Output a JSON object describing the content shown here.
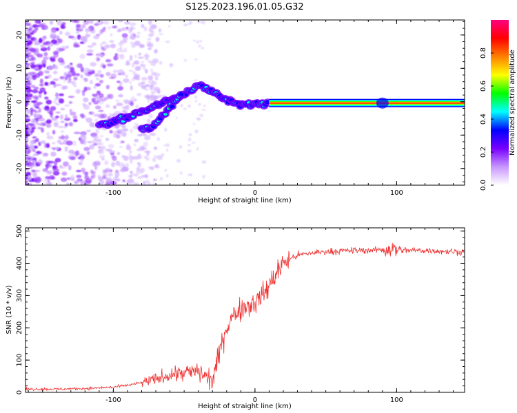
{
  "title": "S125.2023.196.01.05.G32",
  "chart_data": [
    {
      "type": "heatmap",
      "title": "S125.2023.196.01.05.G32",
      "xlabel": "Height of straight line (km)",
      "ylabel": "Frequency (Hz)",
      "xlim": [
        -162,
        148
      ],
      "ylim": [
        -25,
        24.5
      ],
      "x_ticks": [
        -100,
        0,
        100
      ],
      "y_ticks": [
        -20,
        -10,
        0,
        10,
        20
      ],
      "colorbar": {
        "label": "Normalized spectral amplitude",
        "range": [
          0,
          1
        ],
        "ticks": [
          0.0,
          0.2,
          0.4,
          0.6,
          0.8
        ],
        "colormap": [
          "#ffffff",
          "#c896ff",
          "#7800ff",
          "#0000ff",
          "#00ffff",
          "#00ff00",
          "#ffff00",
          "#ff8000",
          "#ff0000",
          "#ff0080"
        ]
      },
      "ridge": {
        "x": [
          -110,
          -100,
          -90,
          -80,
          -70,
          -60,
          -50,
          -45,
          -40,
          -37,
          -30,
          -25,
          -20,
          -15,
          -10,
          -5,
          0,
          5,
          10,
          20,
          50,
          80,
          100,
          120,
          148
        ],
        "y": [
          -7,
          -6,
          -4.5,
          -3,
          -1,
          0.5,
          2,
          3.5,
          4.8,
          5,
          3,
          1.5,
          0.5,
          -0.5,
          -0.8,
          -0.8,
          -0.7,
          -0.6,
          -0.4,
          -0.4,
          -0.4,
          -0.4,
          -0.4,
          -0.4,
          -0.4
        ]
      },
      "ridge2": {
        "x": [
          -80,
          -73,
          -67,
          -62,
          -57,
          -52
        ],
        "y": [
          -8,
          -7.5,
          -5,
          -2.5,
          0,
          2
        ]
      }
    },
    {
      "type": "line",
      "xlabel": "Height of straight line (km)",
      "ylabel": "SNR (10 * v/v)",
      "xlim": [
        -162,
        148
      ],
      "ylim": [
        0,
        510
      ],
      "x_ticks": [
        -100,
        0,
        100
      ],
      "y_ticks": [
        0,
        100,
        200,
        300,
        400,
        500
      ],
      "series": [
        {
          "color": "#ee3030",
          "x": [
            -162,
            -140,
            -120,
            -100,
            -90,
            -80,
            -70,
            -60,
            -50,
            -40,
            -35,
            -30,
            -25,
            -22,
            -18,
            -15,
            -10,
            -5,
            0,
            5,
            10,
            15,
            20,
            25,
            30,
            40,
            50,
            60,
            70,
            80,
            90,
            95,
            100,
            110,
            120,
            130,
            148
          ],
          "values": [
            10,
            10,
            12,
            16,
            22,
            30,
            40,
            55,
            60,
            65,
            50,
            35,
            120,
            180,
            220,
            240,
            260,
            270,
            280,
            300,
            330,
            370,
            400,
            415,
            425,
            432,
            436,
            438,
            440,
            440,
            442,
            445,
            442,
            440,
            440,
            438,
            435
          ]
        }
      ]
    }
  ]
}
